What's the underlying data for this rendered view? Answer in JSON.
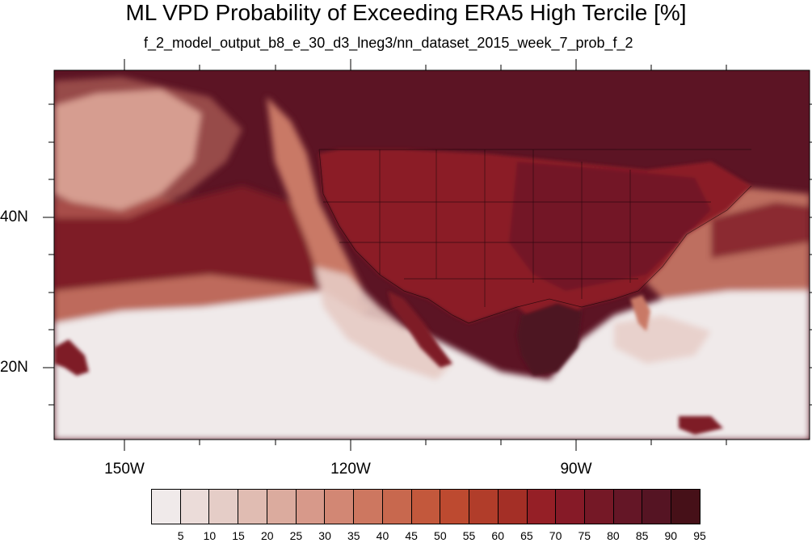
{
  "title": "ML VPD Probability of Exceeding ERA5 High Tercile [%]",
  "subtitle": "f_2_model_output_b8_e_30_d3_lneg3/nn_dataset_2015_week_7_prob_f_2",
  "longitude_labels": [
    "150W",
    "120W",
    "90W"
  ],
  "latitude_labels": [
    "40N",
    "20N"
  ],
  "colorbar": {
    "labels": [
      "5",
      "10",
      "15",
      "20",
      "25",
      "30",
      "35",
      "40",
      "45",
      "50",
      "55",
      "60",
      "65",
      "70",
      "75",
      "80",
      "85",
      "90",
      "95"
    ],
    "colors": [
      "#f0eaea",
      "#ebdcd9",
      "#e5cdc7",
      "#e0bcb2",
      "#dbab9e",
      "#d7998a",
      "#d28774",
      "#cd7760",
      "#c8684e",
      "#c3583c",
      "#bd4a30",
      "#b13d2a",
      "#a42f26",
      "#951f26",
      "#861a27",
      "#751826",
      "#641626",
      "#551423",
      "#461018"
    ]
  },
  "field_colors": {
    "ocean_south": "#f0eaea",
    "ocean_pale": "#e6cbc4",
    "ocean_mid": "#c97966",
    "ocean_dark": "#7e1a27",
    "north_dark": "#5c1424",
    "land_dark": "#6e1727",
    "land_mid": "#8b1e28",
    "gulf_dark": "#4d1220"
  }
}
